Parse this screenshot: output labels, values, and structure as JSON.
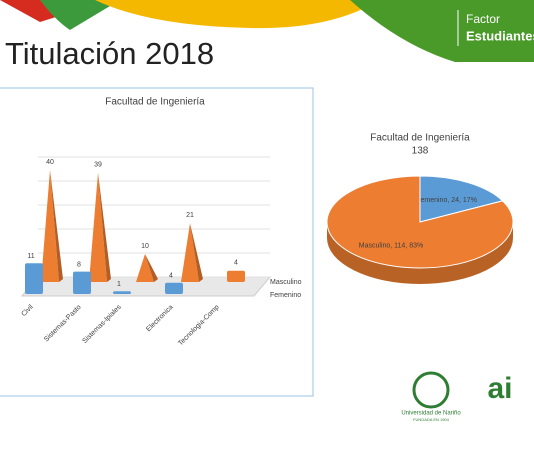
{
  "header": {
    "title": "Titulación 2018",
    "brand_line1": "Factor",
    "brand_line2": "Estudiantes"
  },
  "logos": {
    "university": "Universidad de Nariño",
    "university_sub": "FUNDADA EN 1904",
    "ai": "ai"
  },
  "chart_data": [
    {
      "type": "bar3d",
      "title": "Facultad de Ingeniería",
      "categories": [
        "Civil",
        "Sistemas-Pasto",
        "Sistemas-Ipiales",
        "Electronica",
        "Tecnologia-Comp"
      ],
      "series": [
        {
          "name": "Masculino",
          "color": "#ed7d31",
          "values": [
            40,
            39,
            10,
            21,
            4
          ]
        },
        {
          "name": "Femenino",
          "color": "#5b9bd5",
          "values": [
            11,
            8,
            1,
            4,
            null
          ]
        }
      ],
      "ylim": [
        0,
        45
      ]
    },
    {
      "type": "pie",
      "title": "Facultad de Ingeniería",
      "subtitle": "138",
      "categories": [
        "Femenino",
        "Masculino"
      ],
      "values": [
        24,
        114
      ],
      "value_labels": [
        "Femenino, 24, 17%",
        "Masculino, 114, 83%"
      ],
      "colors": [
        "#5b9bd5",
        "#ed7d31"
      ]
    }
  ]
}
